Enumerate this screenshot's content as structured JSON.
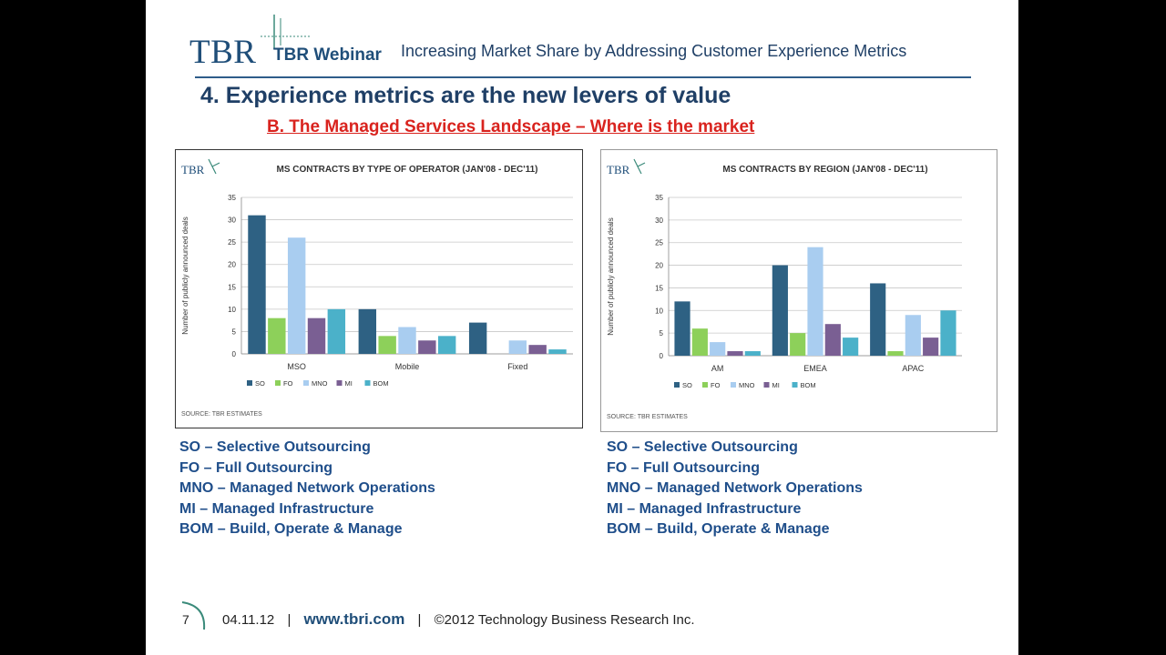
{
  "header": {
    "logo": "TBR",
    "webinar_label": "TBR Webinar",
    "title": "Increasing Market Share by Addressing Customer Experience Metrics"
  },
  "section_title": "4. Experience metrics are the new levers of value",
  "sub_title": "B. The Managed Services Landscape – Where is the market",
  "colors": {
    "SO": "#2e6183",
    "FO": "#8dd05a",
    "MNO": "#a9cdf0",
    "MI": "#7a5f93",
    "BOM": "#4bb1c9",
    "brand": "#1f4e79",
    "accent_red": "#d9231e"
  },
  "chart_data": [
    {
      "type": "bar",
      "logo": "TBR",
      "title": "MS CONTRACTS BY TYPE OF OPERATOR (JAN'08 - DEC'11)",
      "ylabel": "Number of publicly announced deals",
      "xlabel": "",
      "ylim": [
        0,
        35
      ],
      "yticks": [
        0,
        5,
        10,
        15,
        20,
        25,
        30,
        35
      ],
      "grid": true,
      "categories": [
        "MSO",
        "Mobile",
        "Fixed"
      ],
      "series": [
        {
          "name": "SO",
          "values": [
            31,
            10,
            7
          ]
        },
        {
          "name": "FO",
          "values": [
            8,
            4,
            0
          ]
        },
        {
          "name": "MNO",
          "values": [
            26,
            6,
            3
          ]
        },
        {
          "name": "MI",
          "values": [
            8,
            3,
            2
          ]
        },
        {
          "name": "BOM",
          "values": [
            10,
            4,
            1
          ]
        }
      ],
      "legend": "bottom",
      "source": "SOURCE: TBR ESTIMATES"
    },
    {
      "type": "bar",
      "logo": "TBR",
      "title": "MS CONTRACTS BY REGION (JAN'08 - DEC'11)",
      "ylabel": "Number of publicly announced deals",
      "xlabel": "",
      "ylim": [
        0,
        35
      ],
      "yticks": [
        0,
        5,
        10,
        15,
        20,
        25,
        30,
        35
      ],
      "grid": true,
      "categories": [
        "AM",
        "EMEA",
        "APAC"
      ],
      "series": [
        {
          "name": "SO",
          "values": [
            12,
            20,
            16
          ]
        },
        {
          "name": "FO",
          "values": [
            6,
            5,
            1
          ]
        },
        {
          "name": "MNO",
          "values": [
            3,
            24,
            9
          ]
        },
        {
          "name": "MI",
          "values": [
            1,
            7,
            4
          ]
        },
        {
          "name": "BOM",
          "values": [
            1,
            4,
            10
          ]
        }
      ],
      "legend": "bottom",
      "source": "SOURCE: TBR ESTIMATES"
    }
  ],
  "definitions_left": [
    "SO – Selective Outsourcing",
    "FO – Full Outsourcing",
    "MNO – Managed Network Operations",
    "MI – Managed Infrastructure",
    "BOM – Build, Operate & Manage"
  ],
  "definitions_right": [
    "SO – Selective Outsourcing",
    "FO – Full Outsourcing",
    "MNO – Managed Network Operations",
    "MI – Managed Infrastructure",
    "BOM – Build, Operate & Manage"
  ],
  "footer": {
    "page_number": "7",
    "date": "04.11.12",
    "separator": "|",
    "url": "www.tbri.com",
    "copyright": "©2012 Technology Business Research Inc."
  }
}
